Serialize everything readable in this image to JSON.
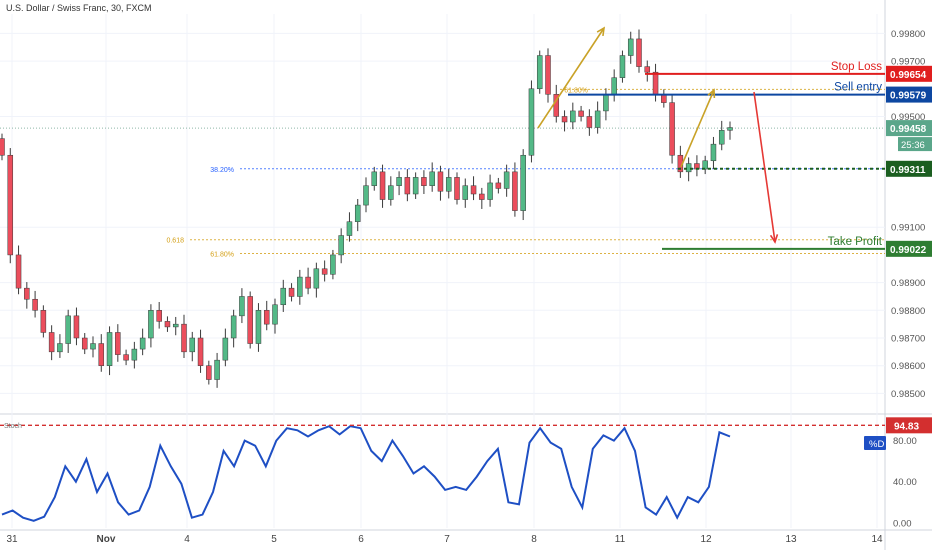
{
  "header": {
    "title": "U.S. Dollar / Swiss Franc, 30, FXCM"
  },
  "colors": {
    "up": "#53b987",
    "down": "#eb4d5c",
    "wick": "#3a3a3a",
    "grid": "#f0f3fa",
    "fib": "#d4a017",
    "fib_blue": "#2962ff",
    "stop_loss": "#e01e1e",
    "sell_entry": "#0d47a1",
    "take_profit": "#2e7d32",
    "support": "#1b5e20",
    "stoch": "#1e4fc4",
    "stoch_level": "#d32f2f",
    "arrow_up": "#c9a227",
    "arrow_down": "#e53935"
  },
  "chart_data": [
    {
      "type": "line",
      "panel": "price",
      "title": "U.S. Dollar / Swiss Franc, 30, FXCM",
      "x_ticks": [
        "31",
        "Nov",
        "4",
        "5",
        "6",
        "7",
        "8",
        "11",
        "12",
        "13",
        "14"
      ],
      "y_ticks": [
        "0.98500",
        "0.98600",
        "0.98700",
        "0.98800",
        "0.98900",
        "0.99100",
        "0.99500",
        "0.99700",
        "0.99800"
      ],
      "ylim": [
        0.9844,
        0.9987
      ],
      "series": [
        {
          "values": [
            0.9936,
            0.99,
            0.9888,
            0.9884,
            0.988,
            0.9872,
            0.9865,
            0.9868,
            0.9878,
            0.987,
            0.9866,
            0.9868,
            0.986,
            0.9872,
            0.9864,
            0.9862,
            0.9866,
            0.987,
            0.988,
            0.9876,
            0.9874,
            0.9875,
            0.9865,
            0.987,
            0.986,
            0.9855,
            0.9862,
            0.987,
            0.9878,
            0.9885,
            0.9868,
            0.988,
            0.9875,
            0.9882,
            0.9888,
            0.9885,
            0.9892,
            0.9888,
            0.9895,
            0.9893,
            0.99,
            0.9907,
            0.9912,
            0.9918,
            0.9925,
            0.993,
            0.992,
            0.9925,
            0.9928,
            0.9922,
            0.9928,
            0.9925,
            0.993,
            0.9923,
            0.9928,
            0.992,
            0.9925,
            0.9922,
            0.992,
            0.9926,
            0.9924,
            0.993,
            0.9916,
            0.9936,
            0.996,
            0.9972,
            0.9958,
            0.995,
            0.9948,
            0.9952,
            0.995,
            0.9946,
            0.9952,
            0.9958,
            0.9964,
            0.9972,
            0.9978,
            0.9968,
            0.9966,
            0.9958,
            0.9955,
            0.9936,
            0.993,
            0.9933,
            0.9931,
            0.9934,
            0.994,
            0.9945,
            0.9946
          ]
        }
      ],
      "levels": [
        {
          "label": "Stop Loss",
          "value": "0.99654",
          "price": 0.99654
        },
        {
          "label": "Sell entry",
          "value": "0.99579",
          "price": 0.99579
        },
        {
          "label": "",
          "value": "0.99458",
          "price": 0.99458
        },
        {
          "label": "",
          "value": "0.99311",
          "price": 0.99311
        },
        {
          "label": "Take Profit",
          "value": "0.99022",
          "price": 0.99022
        }
      ],
      "fib_levels": [
        {
          "label": "38.20%",
          "price": 0.99311
        },
        {
          "label": "0.618",
          "price": 0.99055
        },
        {
          "label": "61.80%",
          "price": 0.99005
        },
        {
          "label": "61.80%",
          "price": 0.99598
        }
      ],
      "countdown": "25:36"
    },
    {
      "type": "line",
      "panel": "stochastic",
      "name": "Stoch",
      "y_ticks": [
        "80.00",
        "40.00",
        "0.00"
      ],
      "ylim": [
        -5,
        100
      ],
      "level": {
        "value": "94.83",
        "price": 94.83
      },
      "badge": "%D",
      "series": [
        {
          "values": [
            8,
            12,
            5,
            2,
            6,
            25,
            55,
            40,
            62,
            30,
            48,
            20,
            8,
            12,
            35,
            75,
            55,
            38,
            5,
            8,
            30,
            70,
            55,
            80,
            75,
            55,
            80,
            92,
            90,
            84,
            90,
            94,
            86,
            94,
            92,
            70,
            60,
            80,
            65,
            48,
            55,
            45,
            32,
            35,
            32,
            45,
            60,
            72,
            20,
            18,
            78,
            92,
            78,
            72,
            35,
            15,
            72,
            85,
            80,
            92,
            70,
            15,
            8,
            25,
            5,
            25,
            20,
            35,
            88,
            84
          ]
        }
      ]
    }
  ]
}
